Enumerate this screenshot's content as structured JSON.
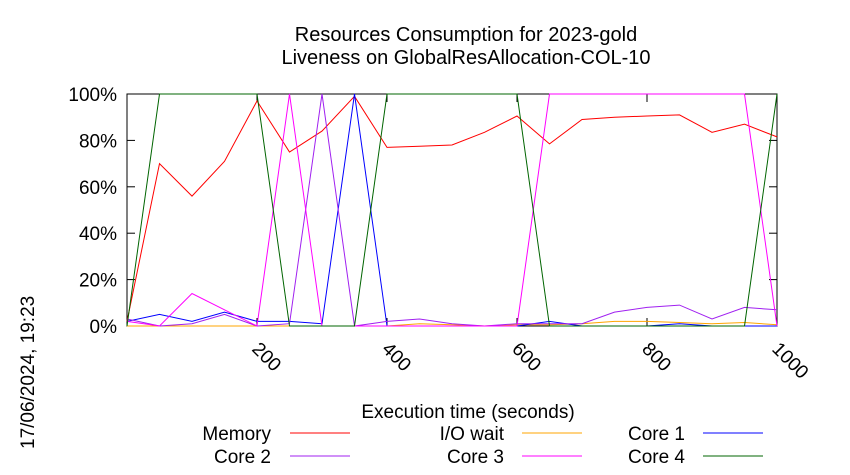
{
  "chart_data": {
    "type": "line",
    "title": [
      "Resources Consumption for 2023-gold",
      "Liveness on GlobalResAllocation-COL-10"
    ],
    "xlabel": "Execution time (seconds)",
    "ylabel": "",
    "xlim": [
      0,
      1000
    ],
    "ylim": [
      0,
      100
    ],
    "xticks": [
      200,
      400,
      600,
      800,
      1000
    ],
    "yticks": [
      0,
      20,
      40,
      60,
      80,
      100
    ],
    "ytick_labels": [
      "0%",
      "20%",
      "40%",
      "60%",
      "80%",
      "100%"
    ],
    "timestamp": "17/06/2024, 19:23",
    "grid": false,
    "legend_position": "bottom",
    "series": [
      {
        "name": "Memory",
        "color": "#ff0000",
        "x": [
          0,
          50,
          100,
          150,
          200,
          250,
          300,
          350,
          400,
          450,
          500,
          550,
          600,
          650,
          700,
          750,
          800,
          850,
          900,
          950,
          1000
        ],
        "y": [
          2,
          70,
          56,
          71,
          97,
          75,
          84,
          99,
          77,
          77.5,
          78,
          83.5,
          90.5,
          78.5,
          89,
          90,
          90.5,
          91,
          83.5,
          87,
          81.5
        ]
      },
      {
        "name": "I/O wait",
        "color": "#ffa500",
        "x": [
          0,
          50,
          100,
          150,
          200,
          250,
          300,
          350,
          400,
          450,
          500,
          550,
          600,
          650,
          700,
          750,
          800,
          850,
          900,
          950,
          1000
        ],
        "y": [
          0,
          0,
          0,
          0,
          0,
          0,
          0,
          0,
          0,
          1,
          0.5,
          0,
          0.5,
          0.5,
          1,
          2,
          2,
          1.5,
          1,
          1.5,
          0.5
        ]
      },
      {
        "name": "Core 1",
        "color": "#0000ff",
        "x": [
          0,
          50,
          100,
          150,
          200,
          250,
          300,
          350,
          400,
          450,
          500,
          550,
          600,
          650,
          700,
          750,
          800,
          850,
          900,
          950,
          1000
        ],
        "y": [
          2,
          5,
          2,
          6,
          2,
          2,
          1,
          100,
          0,
          0,
          0,
          0,
          0,
          2,
          0,
          0,
          0,
          1,
          0,
          0,
          0
        ]
      },
      {
        "name": "Core 2",
        "color": "#a020f0",
        "x": [
          0,
          50,
          100,
          150,
          200,
          250,
          300,
          350,
          400,
          450,
          500,
          550,
          600,
          650,
          700,
          750,
          800,
          850,
          900,
          950,
          1000
        ],
        "y": [
          3,
          0,
          1,
          5,
          0,
          1,
          100,
          0,
          2,
          3,
          1,
          0,
          1,
          1,
          1,
          6,
          8,
          9,
          3,
          8,
          7
        ]
      },
      {
        "name": "Core 3",
        "color": "#ff00ff",
        "x": [
          0,
          50,
          100,
          150,
          200,
          250,
          300,
          350,
          400,
          450,
          500,
          550,
          600,
          650,
          700,
          750,
          800,
          850,
          900,
          950,
          1000
        ],
        "y": [
          2,
          0,
          14,
          7,
          0,
          100,
          0,
          0,
          0,
          0,
          0,
          0,
          0,
          100,
          100,
          100,
          100,
          100,
          100,
          100,
          0
        ]
      },
      {
        "name": "Core 4",
        "color": "#006400",
        "x": [
          0,
          50,
          100,
          150,
          200,
          250,
          300,
          350,
          400,
          450,
          500,
          550,
          600,
          650,
          700,
          750,
          800,
          850,
          900,
          950,
          1000
        ],
        "y": [
          0,
          100,
          100,
          100,
          100,
          0,
          0,
          0,
          100,
          100,
          100,
          100,
          100,
          0,
          0,
          0,
          0,
          0,
          0,
          0,
          100
        ]
      }
    ]
  }
}
